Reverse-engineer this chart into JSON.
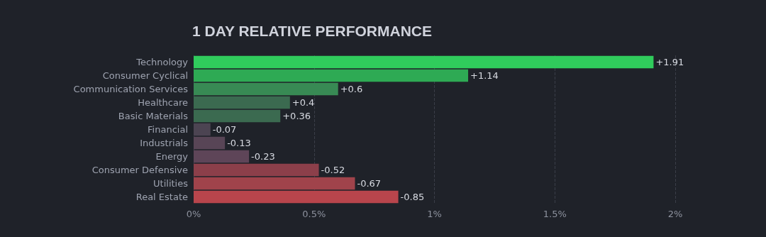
{
  "chart_data": {
    "type": "bar",
    "orientation": "horizontal",
    "title": "1 DAY RELATIVE PERFORMANCE",
    "categories": [
      "Technology",
      "Consumer Cyclical",
      "Communication Services",
      "Healthcare",
      "Basic Materials",
      "Financial",
      "Industrials",
      "Energy",
      "Consumer Defensive",
      "Utilities",
      "Real Estate"
    ],
    "values": [
      1.91,
      1.14,
      0.6,
      0.4,
      0.36,
      -0.07,
      -0.13,
      -0.23,
      -0.52,
      -0.67,
      -0.85
    ],
    "base": [
      0,
      0,
      0,
      0,
      0,
      0.07,
      0.13,
      0.23,
      0.52,
      0.67,
      0.85
    ],
    "value_labels": [
      "+1.91",
      "+1.14",
      "+0.6",
      "+0.4",
      "+0.36",
      "-0.07",
      "-0.13",
      "-0.23",
      "-0.52",
      "-0.67",
      "-0.85"
    ],
    "colors": [
      "#30cc5c",
      "#2eaa54",
      "#388a54",
      "#3b6a50",
      "#3b6a50",
      "#4c4452",
      "#584556",
      "#5e4558",
      "#8c3f4a",
      "#a0434b",
      "#b8454c"
    ],
    "xlim": [
      0,
      2
    ],
    "xticks": [
      {
        "value": 0,
        "label": "0%"
      },
      {
        "value": 0.5,
        "label": "0.5%"
      },
      {
        "value": 1,
        "label": "1%"
      },
      {
        "value": 1.5,
        "label": "1.5%"
      },
      {
        "value": 2,
        "label": "2%"
      }
    ],
    "grid": "x"
  }
}
